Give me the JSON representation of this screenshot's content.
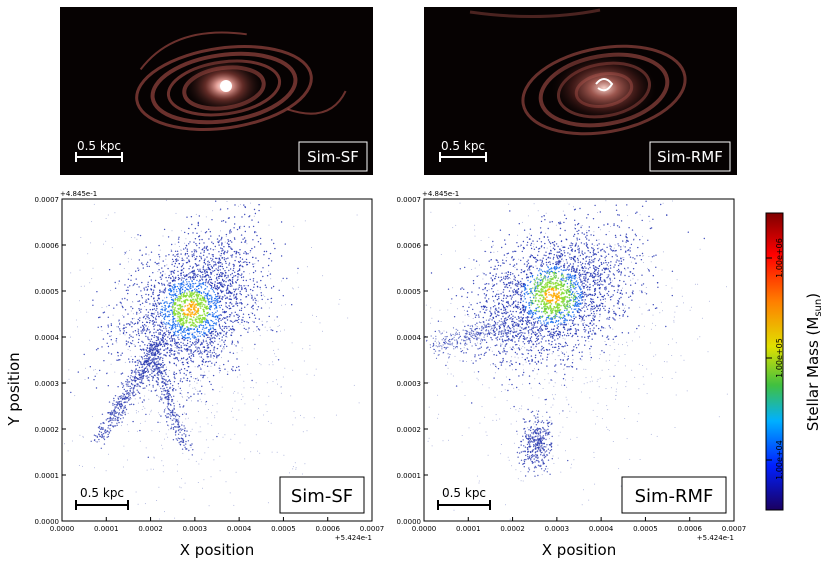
{
  "images": [
    {
      "label": "Sim-SF",
      "scale_bar": "0.5 kpc"
    },
    {
      "label": "Sim-RMF",
      "scale_bar": "0.5 kpc"
    }
  ],
  "chart_data": [
    {
      "type": "scatter",
      "label": "Sim-SF",
      "scale_bar": "0.5 kpc",
      "xlabel": "X position",
      "ylabel": "Y position",
      "x_offset_label": "+5.424e-1",
      "y_offset_label": "+4.845e-1",
      "xlim": [
        0,
        0.0007
      ],
      "ylim": [
        0,
        0.0007
      ],
      "x_ticks": [
        "0.0000",
        "0.0001",
        "0.0002",
        "0.0003",
        "0.0004",
        "0.0005",
        "0.0006",
        "0.0007"
      ],
      "y_ticks": [
        "0.0000",
        "0.0001",
        "0.0002",
        "0.0003",
        "0.0004",
        "0.0005",
        "0.0006",
        "0.0007"
      ],
      "center": [
        0.00029,
        0.00046
      ]
    },
    {
      "type": "scatter",
      "label": "Sim-RMF",
      "scale_bar": "0.5 kpc",
      "xlabel": "X position",
      "ylabel": "",
      "x_offset_label": "+5.424e-1",
      "y_offset_label": "+4.845e-1",
      "xlim": [
        0,
        0.0007
      ],
      "ylim": [
        0,
        0.0007
      ],
      "x_ticks": [
        "0.0000",
        "0.0001",
        "0.0002",
        "0.0003",
        "0.0004",
        "0.0005",
        "0.0006",
        "0.0007"
      ],
      "y_ticks": [
        "0.0000",
        "0.0001",
        "0.0002",
        "0.0003",
        "0.0004",
        "0.0005",
        "0.0006",
        "0.0007"
      ],
      "center": [
        0.00029,
        0.00049
      ]
    }
  ],
  "colorbar": {
    "label": "Stellar Mass (M",
    "label_sub": "sun",
    "label_end": ")",
    "ticks": [
      "1.00e+06",
      "1.00e+05",
      "1.00e+04"
    ],
    "colormap": [
      "#7f0000",
      "#ff0000",
      "#ff8000",
      "#ffff00",
      "#80ff80",
      "#00c0ff",
      "#0000ff",
      "#00007f"
    ]
  }
}
